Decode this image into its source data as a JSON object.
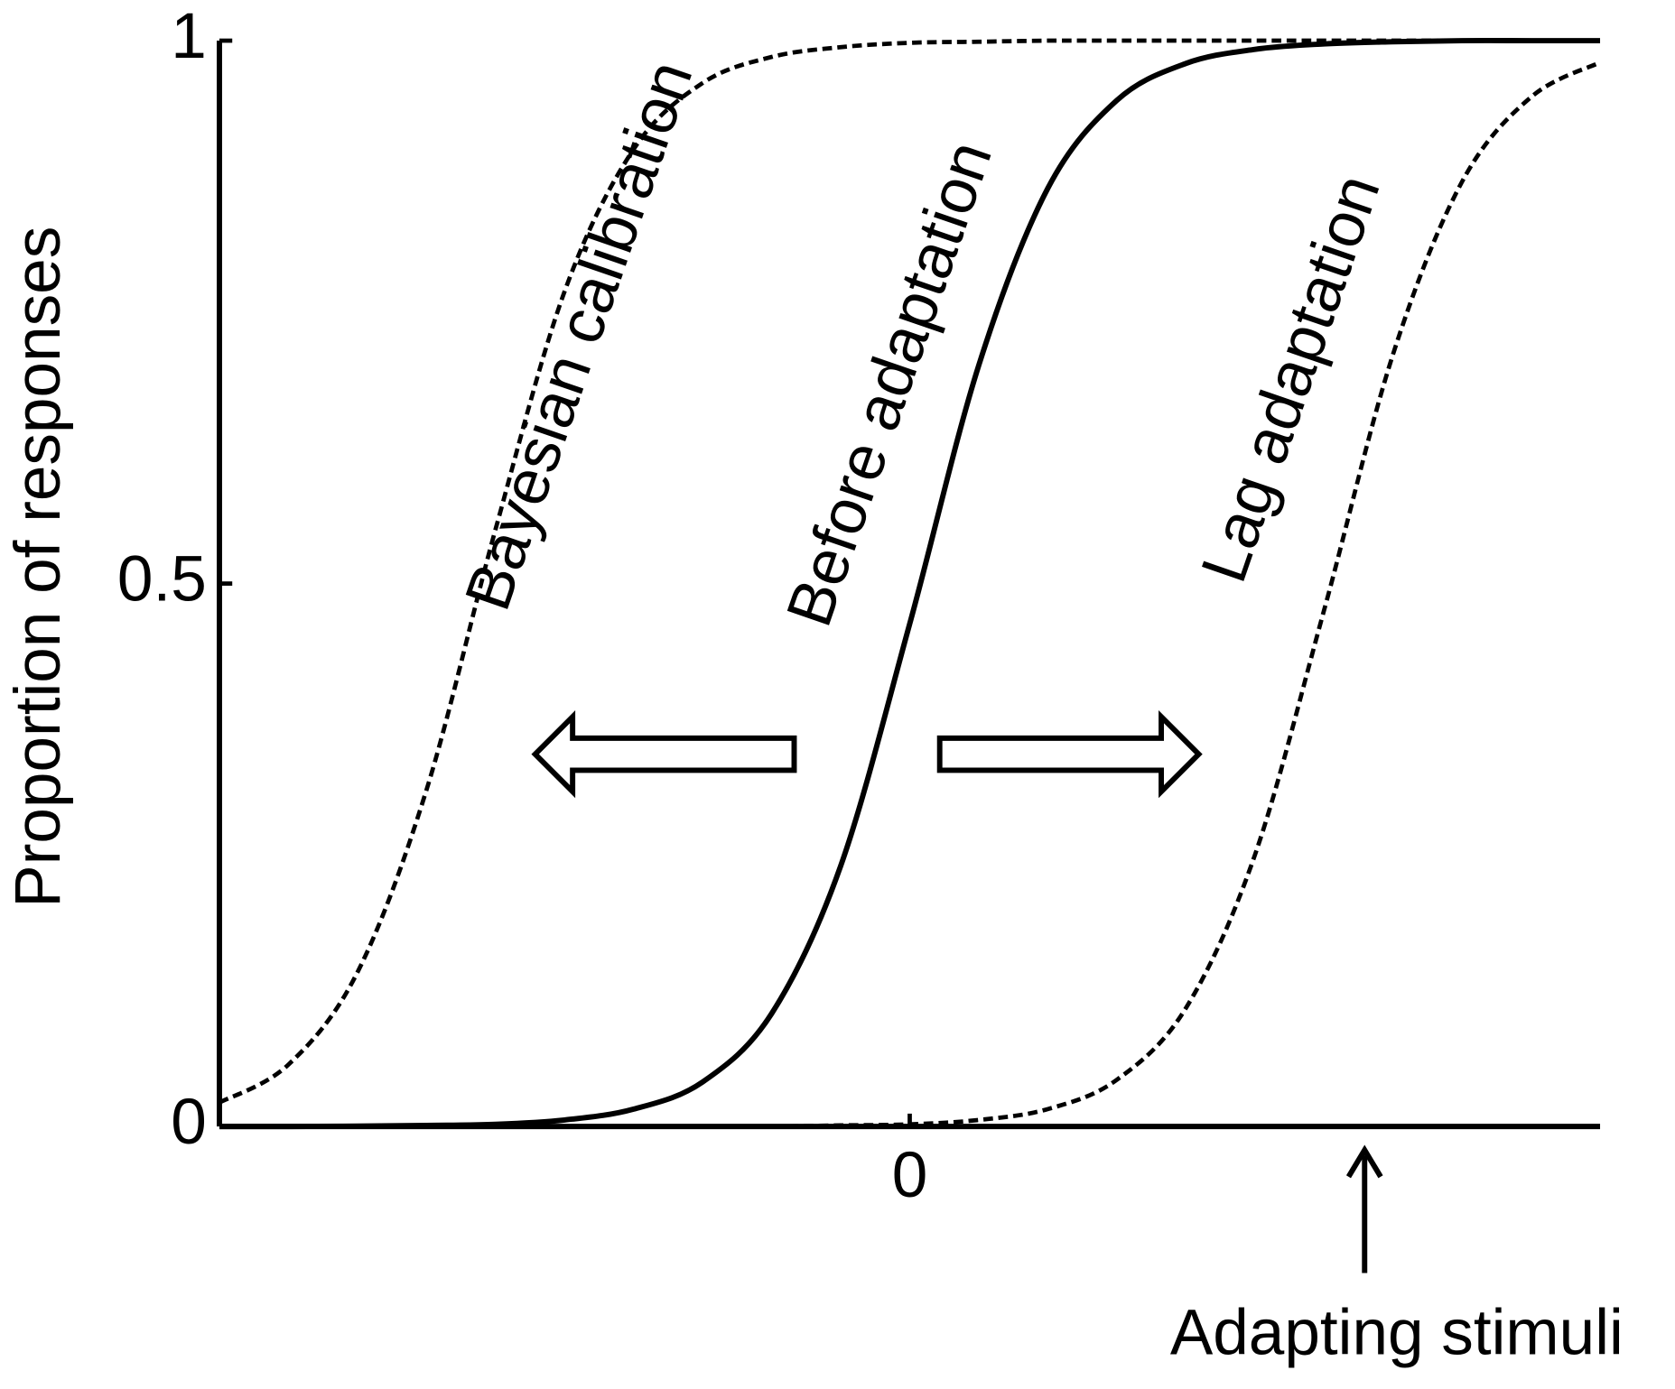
{
  "chart_data": {
    "type": "line",
    "y_label": "Proportion of responses",
    "xlim": [
      -1,
      1
    ],
    "ylim": [
      0,
      1
    ],
    "xticks": [
      0
    ],
    "yticks": [
      0,
      0.5,
      1
    ],
    "x": [
      -1,
      -0.9,
      -0.8,
      -0.7,
      -0.6,
      -0.5,
      -0.4,
      -0.3,
      -0.2,
      -0.1,
      0,
      0.1,
      0.2,
      0.3,
      0.4,
      0.5,
      0.6,
      0.7,
      0.8,
      0.9,
      1
    ],
    "series": [
      {
        "name": "Bayesian calibration",
        "color": "#000000",
        "dashed": true,
        "values": [
          0.022,
          0.057,
          0.142,
          0.31,
          0.55,
          0.769,
          0.9,
          0.961,
          0.985,
          0.994,
          0.998,
          0.999,
          1,
          1,
          1,
          1,
          1,
          1,
          1,
          1,
          1
        ]
      },
      {
        "name": "Before adaptation",
        "color": "#000000",
        "dashed": false,
        "values": [
          0,
          0,
          0.0003,
          0.001,
          0.002,
          0.006,
          0.016,
          0.041,
          0.104,
          0.24,
          0.463,
          0.701,
          0.864,
          0.945,
          0.979,
          0.992,
          0.997,
          0.999,
          1,
          1,
          1
        ]
      },
      {
        "name": "Lag adaptation",
        "color": "#000000",
        "dashed": true,
        "values": [
          0,
          0,
          0,
          0,
          0,
          0,
          0,
          0,
          0,
          0.001,
          0.002,
          0.006,
          0.016,
          0.043,
          0.109,
          0.25,
          0.475,
          0.711,
          0.87,
          0.948,
          0.98
        ]
      }
    ],
    "annotation": "Adapting stimuli"
  }
}
